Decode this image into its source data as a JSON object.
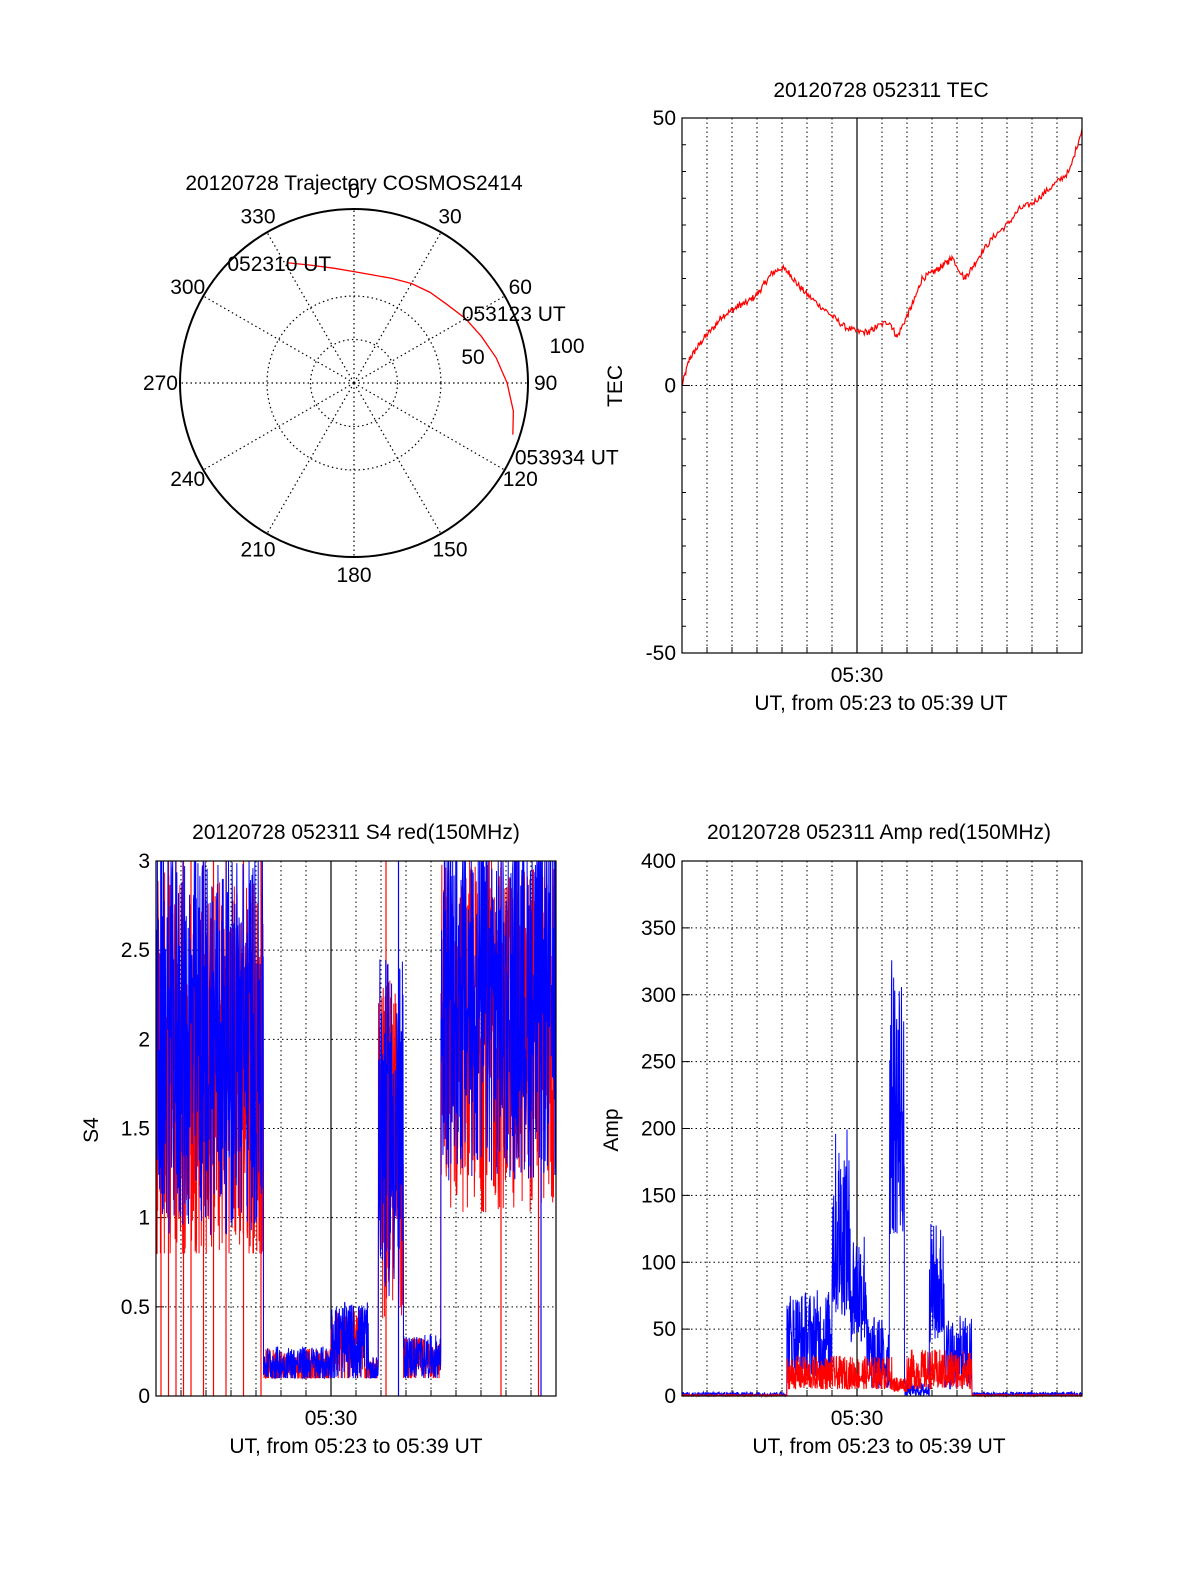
{
  "colors": {
    "red": "#ff0000",
    "blue": "#0000ff",
    "axis": "#000000",
    "grid": "#000000"
  },
  "chart_data": [
    {
      "id": "trajectory",
      "type": "polar-trajectory",
      "title": "20120728 Trajectory COSMOS2414",
      "azimuth_labels": [
        "0",
        "30",
        "60",
        "90",
        "120",
        "150",
        "180",
        "210",
        "240",
        "270",
        "300",
        "330"
      ],
      "radial_labels": [
        "50",
        "100"
      ],
      "grid": true,
      "track": [
        {
          "az": 331,
          "zen": 79
        },
        {
          "az": 340,
          "zen": 72
        },
        {
          "az": 350,
          "zen": 67
        },
        {
          "az": 0,
          "zen": 64
        },
        {
          "az": 10,
          "zen": 63
        },
        {
          "az": 20,
          "zen": 64
        },
        {
          "az": 30,
          "zen": 66
        },
        {
          "az": 40,
          "zen": 68
        },
        {
          "az": 50,
          "zen": 70
        },
        {
          "az": 60,
          "zen": 74
        },
        {
          "az": 70,
          "zen": 78
        },
        {
          "az": 80,
          "zen": 83
        },
        {
          "az": 90,
          "zen": 88
        },
        {
          "az": 100,
          "zen": 93
        },
        {
          "az": 108,
          "zen": 96
        }
      ],
      "annotations": [
        {
          "text": "052310 UT",
          "az": 331,
          "zen": 79
        },
        {
          "text": "053123 UT",
          "az": 63,
          "zen": 76
        },
        {
          "text": "053934 UT",
          "az": 108,
          "zen": 96
        }
      ]
    },
    {
      "id": "tec",
      "type": "line",
      "title": "20120728 052311 TEC",
      "ylabel": "TEC",
      "xlabel": "UT, from 05:23 to 05:39 UT",
      "xtick_label": "05:30",
      "ylim": [
        -50,
        50
      ],
      "yticks": [
        "-50",
        "0",
        "50"
      ],
      "grid": true,
      "series": [
        {
          "color": "red",
          "x": [
            0,
            0.3,
            0.6,
            0.9,
            1.3,
            1.6,
            2.0,
            2.3,
            2.6,
            3.0,
            3.3,
            3.6,
            4.0,
            4.3,
            4.6,
            5.0,
            5.5,
            6.0,
            6.5,
            7.0,
            7.5,
            7.8,
            8.3,
            8.6,
            9.0,
            9.3,
            9.6,
            10.0,
            10.3,
            10.6,
            10.8,
            11.3,
            11.6,
            12.0,
            12.5,
            13.0,
            13.5,
            14.0,
            14.5,
            15.0,
            15.5,
            16.0
          ],
          "y": [
            0,
            5,
            7,
            9,
            11,
            13,
            14,
            15,
            15.5,
            17,
            19,
            21,
            22,
            21,
            19,
            17,
            15,
            13,
            11,
            10,
            10,
            11,
            12,
            9,
            13,
            16,
            20,
            21,
            22,
            23,
            24,
            20,
            22,
            25,
            28,
            30,
            33,
            34,
            36,
            38,
            40,
            48
          ]
        }
      ]
    },
    {
      "id": "s4",
      "type": "line",
      "title": "20120728 052311 S4 red(150MHz)",
      "ylabel": "S4",
      "xlabel": "UT, from 05:23 to 05:39 UT",
      "xtick_label": "05:30",
      "ylim": [
        0,
        3
      ],
      "yticks": [
        "0",
        "0.5",
        "1",
        "1.5",
        "2",
        "2.5",
        "3"
      ],
      "grid": true,
      "segments": [
        {
          "x0": 0,
          "x1": 4.3,
          "lo": 0.8,
          "hi": 3.0,
          "center": 2.0
        },
        {
          "x0": 4.3,
          "x1": 7.0,
          "lo": 0.1,
          "hi": 0.3,
          "center": 0.18
        },
        {
          "x0": 7.0,
          "x1": 8.5,
          "lo": 0.1,
          "hi": 0.55,
          "center": 0.3
        },
        {
          "x0": 8.5,
          "x1": 8.9,
          "lo": 0.1,
          "hi": 0.25,
          "center": 0.15
        },
        {
          "x0": 8.9,
          "x1": 9.9,
          "lo": 0.4,
          "hi": 2.3,
          "center": 1.5
        },
        {
          "x0": 9.9,
          "x1": 11.4,
          "lo": 0.1,
          "hi": 0.35,
          "center": 0.22
        },
        {
          "x0": 11.4,
          "x1": 16.0,
          "lo": 1.0,
          "hi": 3.0,
          "center": 2.2
        }
      ],
      "red_spike_x": [
        0.2,
        0.5,
        0.8,
        1.1,
        1.4,
        1.9,
        2.3,
        2.8,
        3.5,
        4.2,
        9.2,
        13.8,
        15.3
      ]
    },
    {
      "id": "amp",
      "type": "line",
      "title": "20120728 052311 Amp red(150MHz)",
      "ylabel": "Amp",
      "xlabel": "UT, from 05:23 to 05:39 UT",
      "xtick_label": "05:30",
      "ylim": [
        0,
        400
      ],
      "yticks": [
        "0",
        "50",
        "100",
        "150",
        "200",
        "250",
        "300",
        "350",
        "400"
      ],
      "grid": true,
      "blue_segments": [
        {
          "x0": 0,
          "x1": 4.2,
          "lo": 0,
          "hi": 3
        },
        {
          "x0": 4.2,
          "x1": 6.0,
          "lo": 15,
          "hi": 80
        },
        {
          "x0": 6.0,
          "x1": 6.7,
          "lo": 60,
          "hi": 200
        },
        {
          "x0": 6.7,
          "x1": 7.4,
          "lo": 40,
          "hi": 130
        },
        {
          "x0": 7.4,
          "x1": 8.3,
          "lo": 5,
          "hi": 60
        },
        {
          "x0": 8.3,
          "x1": 8.9,
          "lo": 120,
          "hi": 330
        },
        {
          "x0": 8.9,
          "x1": 9.9,
          "lo": 0,
          "hi": 10
        },
        {
          "x0": 9.9,
          "x1": 10.5,
          "lo": 40,
          "hi": 130
        },
        {
          "x0": 10.5,
          "x1": 11.6,
          "lo": 5,
          "hi": 60
        },
        {
          "x0": 11.6,
          "x1": 16.0,
          "lo": 0,
          "hi": 3
        }
      ],
      "red_segments": [
        {
          "x0": 0,
          "x1": 4.2,
          "lo": 0,
          "hi": 1
        },
        {
          "x0": 4.2,
          "x1": 8.4,
          "lo": 5,
          "hi": 30
        },
        {
          "x0": 8.4,
          "x1": 9.0,
          "lo": 3,
          "hi": 15
        },
        {
          "x0": 9.0,
          "x1": 11.6,
          "lo": 5,
          "hi": 35
        },
        {
          "x0": 11.6,
          "x1": 16.0,
          "lo": 0,
          "hi": 1
        }
      ]
    }
  ]
}
